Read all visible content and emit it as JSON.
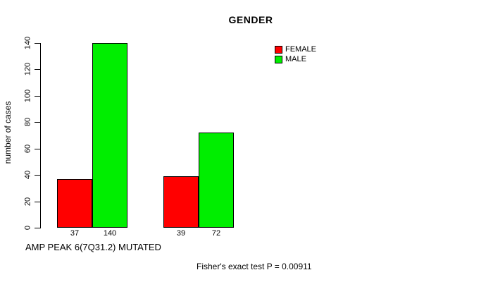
{
  "chart_data": {
    "type": "bar",
    "title": "GENDER",
    "ylabel": "number of cases",
    "xlabel": "AMP PEAK 6(7Q31.2) MUTATED",
    "footnote": "Fisher's exact test P = 0.00911",
    "ylim": [
      0,
      140
    ],
    "yticks": [
      0,
      20,
      40,
      60,
      80,
      100,
      120,
      140
    ],
    "grid": false,
    "legend_position": "top-right",
    "series": [
      {
        "name": "FEMALE",
        "color": "#ff0000"
      },
      {
        "name": "MALE",
        "color": "#00ee00"
      }
    ],
    "groups": [
      {
        "values": [
          37,
          140
        ],
        "bar_labels": [
          "37",
          "140"
        ]
      },
      {
        "values": [
          39,
          72
        ],
        "bar_labels": [
          "39",
          "72"
        ]
      }
    ]
  }
}
